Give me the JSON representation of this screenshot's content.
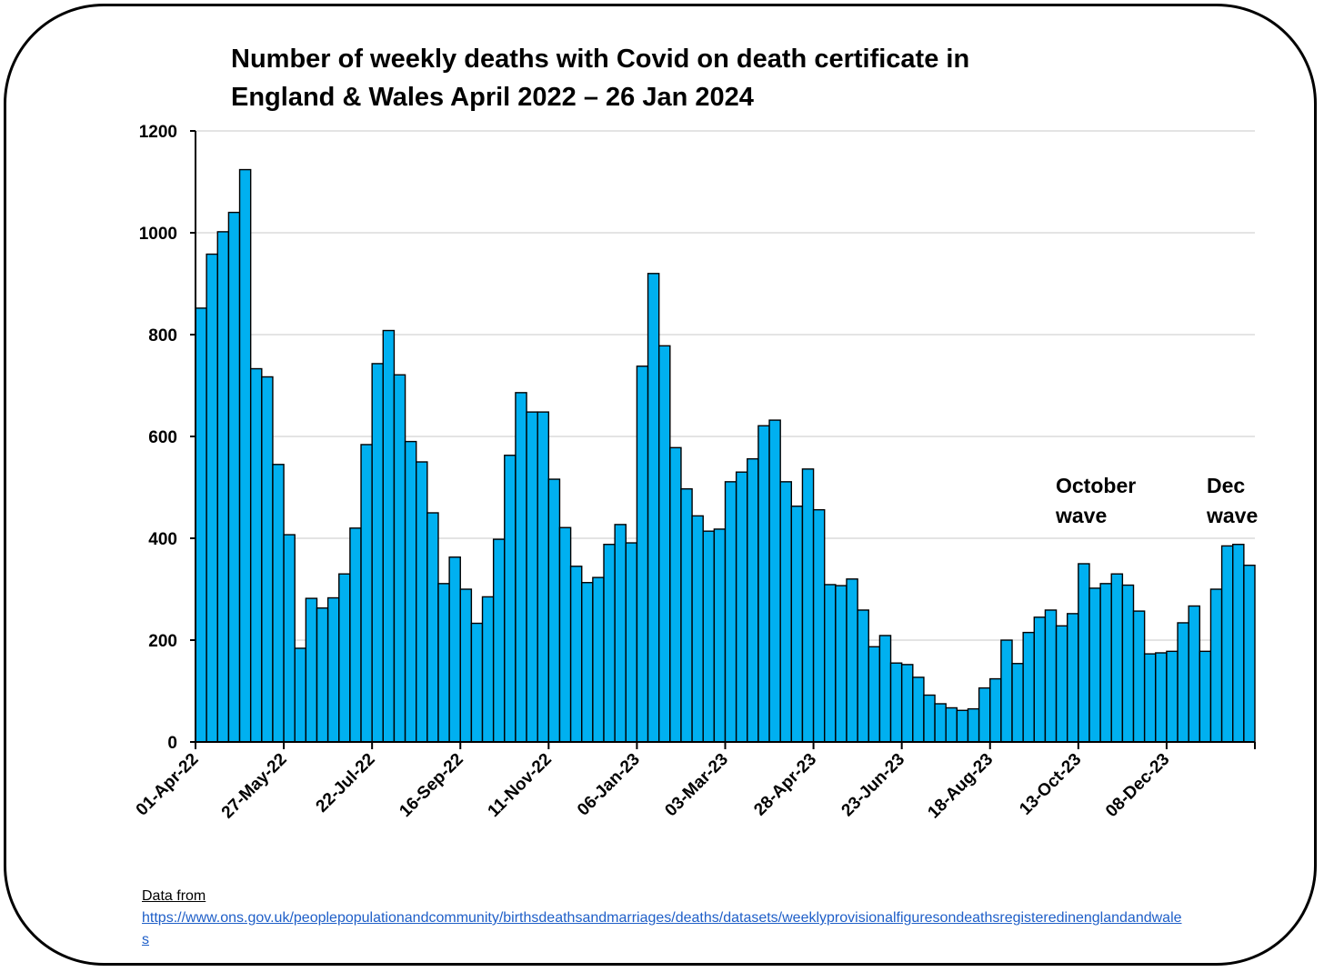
{
  "chart_data": {
    "type": "bar",
    "title_lines": [
      "Number of weekly deaths with Covid on death certificate in",
      "England & Wales April 2022 – 26 Jan 2024"
    ],
    "xlabel": "",
    "ylabel": "",
    "ylim": [
      0,
      1200
    ],
    "yticks": [
      0,
      200,
      400,
      600,
      800,
      1000,
      1200
    ],
    "xtick_labels": [
      "01-Apr-22",
      "27-May-22",
      "22-Jul-22",
      "16-Sep-22",
      "11-Nov-22",
      "06-Jan-23",
      "03-Mar-23",
      "28-Apr-23",
      "23-Jun-23",
      "18-Aug-23",
      "13-Oct-23",
      "08-Dec-23"
    ],
    "xtick_every_n_weeks": 8,
    "grid": "horizontal",
    "bar_color": "#00b0f0",
    "bar_edge_color": "#000000",
    "values": [
      852,
      958,
      1002,
      1040,
      1124,
      733,
      717,
      545,
      407,
      184,
      282,
      263,
      283,
      330,
      420,
      584,
      743,
      808,
      721,
      590,
      550,
      450,
      311,
      363,
      300,
      233,
      285,
      398,
      563,
      686,
      648,
      648,
      516,
      421,
      345,
      313,
      323,
      388,
      427,
      391,
      738,
      920,
      778,
      578,
      497,
      444,
      414,
      418,
      511,
      530,
      556,
      621,
      632,
      511,
      463,
      536,
      456,
      309,
      307,
      320,
      259,
      187,
      209,
      155,
      152,
      127,
      92,
      75,
      67,
      62,
      65,
      106,
      124,
      200,
      154,
      215,
      245,
      259,
      228,
      252,
      350,
      302,
      311,
      330,
      308,
      257,
      173,
      175,
      178,
      234,
      267,
      178,
      300,
      385,
      388,
      347
    ],
    "annotations": [
      {
        "lines": [
          "October",
          "wave"
        ]
      },
      {
        "lines": [
          "Dec",
          "wave"
        ]
      }
    ]
  },
  "source": {
    "label": "Data from",
    "url": "https://www.ons.gov.uk/peoplepopulationandcommunity/birthsdeathsandmarriages/deaths/datasets/weeklyprovisionalfiguresondeathsregisteredinenglandandwales"
  }
}
